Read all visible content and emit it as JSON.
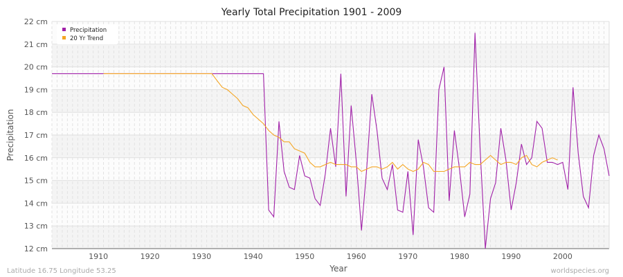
{
  "chart_data": {
    "type": "line",
    "title": "Yearly Total Precipitation 1901 - 2009",
    "xlabel": "Year",
    "ylabel": "Precipitation",
    "xlim": [
      1901,
      2009
    ],
    "ylim": [
      12,
      22
    ],
    "x_ticks": [
      1910,
      1920,
      1930,
      1940,
      1950,
      1960,
      1970,
      1980,
      1990,
      2000
    ],
    "y_ticks": [
      "12 cm",
      "13 cm",
      "14 cm",
      "15 cm",
      "16 cm",
      "17 cm",
      "18 cm",
      "19 cm",
      "20 cm",
      "21 cm",
      "22 cm"
    ],
    "grid": true,
    "legend_placement": "top-left",
    "series": [
      {
        "name": "Precipitation",
        "color": "#a020a8",
        "start_year": 1901,
        "values": [
          19.7,
          19.7,
          19.7,
          19.7,
          19.7,
          19.7,
          19.7,
          19.7,
          19.7,
          19.7,
          19.7,
          19.7,
          19.7,
          19.7,
          19.7,
          19.7,
          19.7,
          19.7,
          19.7,
          19.7,
          19.7,
          19.7,
          19.7,
          19.7,
          19.7,
          19.7,
          19.7,
          19.7,
          19.7,
          19.7,
          19.7,
          19.7,
          19.7,
          19.7,
          19.7,
          19.7,
          19.7,
          19.7,
          19.7,
          19.7,
          19.7,
          19.7,
          13.7,
          13.4,
          17.6,
          15.4,
          14.7,
          14.6,
          16.1,
          15.2,
          15.1,
          14.2,
          13.9,
          15.3,
          17.3,
          15.6,
          19.7,
          14.3,
          18.3,
          15.8,
          12.8,
          15.5,
          18.8,
          17.2,
          15.1,
          14.6,
          15.7,
          13.7,
          13.6,
          15.4,
          12.6,
          16.8,
          15.6,
          13.8,
          13.6,
          19.0,
          20.0,
          14.1,
          17.2,
          15.5,
          13.4,
          14.4,
          21.5,
          16.3,
          12.0,
          14.2,
          14.9,
          17.3,
          15.9,
          13.7,
          14.9,
          16.6,
          15.7,
          16.0,
          17.6,
          17.3,
          15.8,
          15.8,
          15.7,
          15.8,
          14.6,
          19.1,
          16.2,
          14.3,
          13.8,
          16.1,
          17.0,
          16.4,
          15.2
        ]
      },
      {
        "name": "20 Yr Trend",
        "color": "#f5a623",
        "start_year": 1911,
        "values": [
          19.7,
          19.7,
          19.7,
          19.7,
          19.7,
          19.7,
          19.7,
          19.7,
          19.7,
          19.7,
          19.7,
          19.7,
          19.7,
          19.7,
          19.7,
          19.7,
          19.7,
          19.7,
          19.7,
          19.7,
          19.7,
          19.7,
          19.4,
          19.1,
          19.0,
          18.8,
          18.6,
          18.3,
          18.2,
          17.9,
          17.7,
          17.5,
          17.2,
          17.0,
          16.9,
          16.7,
          16.7,
          16.4,
          16.3,
          16.2,
          15.8,
          15.6,
          15.6,
          15.7,
          15.8,
          15.7,
          15.7,
          15.7,
          15.6,
          15.6,
          15.4,
          15.5,
          15.6,
          15.6,
          15.5,
          15.6,
          15.8,
          15.5,
          15.7,
          15.5,
          15.4,
          15.5,
          15.8,
          15.7,
          15.4,
          15.4,
          15.4,
          15.5,
          15.6,
          15.6,
          15.6,
          15.8,
          15.7,
          15.7,
          15.9,
          16.1,
          15.9,
          15.7,
          15.8,
          15.8,
          15.7,
          16.0,
          16.1,
          15.7,
          15.6,
          15.8,
          15.9,
          16.0,
          15.9
        ]
      }
    ]
  },
  "footer": {
    "location": "Latitude 16.75 Longitude 53.25",
    "source": "worldspecies.org"
  }
}
